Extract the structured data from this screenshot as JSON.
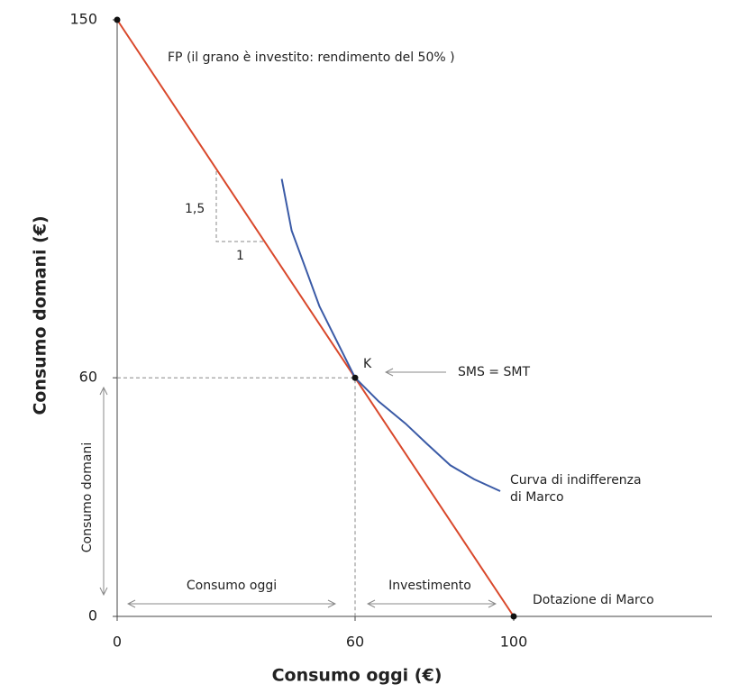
{
  "chart_data": {
    "type": "line",
    "x_label": "Consumo oggi (€)",
    "y_label": "Consumo domani (€)",
    "xlim": [
      0,
      150
    ],
    "ylim": [
      0,
      150
    ],
    "xticks": [
      0,
      60,
      100
    ],
    "yticks": [
      0,
      60,
      150
    ],
    "series": [
      {
        "color": "#d9482b",
        "x": [
          0,
          100
        ],
        "values": [
          150,
          0
        ]
      },
      {
        "color": "#3a5aa6",
        "x": [
          41.5,
          44,
          47.7,
          51,
          54.5,
          60,
          66,
          72.7,
          78,
          84,
          90,
          96.6
        ],
        "values": [
          110,
          97,
          87,
          78,
          71,
          60,
          54,
          48.5,
          43.5,
          38,
          34.5,
          31.5
        ]
      }
    ],
    "k": {
      "label": "K",
      "x": 60,
      "y": 60
    },
    "annotations": {
      "fp": "FP (il grano è investito: rendimento del 50% )",
      "rise": "1,5",
      "run": "1",
      "sms": "SMS = SMT",
      "curve_line1": "Curva di indifferenza",
      "curve_line2": "di Marco",
      "consumo_domani": "Consumo domani",
      "consumo_oggi": "Consumo oggi",
      "investimento": "Investimento",
      "dotazione": "Dotazione di Marco"
    }
  }
}
